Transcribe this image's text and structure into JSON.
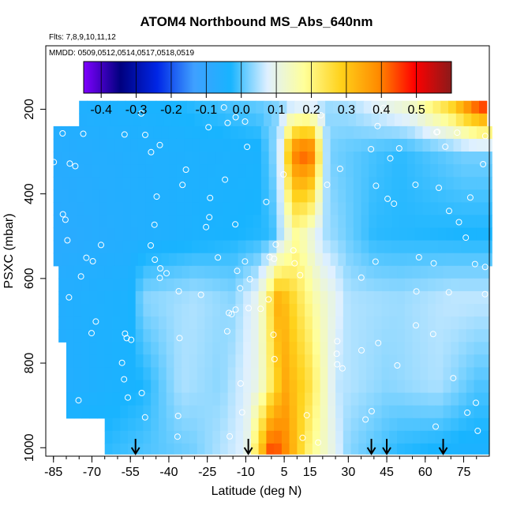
{
  "chart_data": {
    "type": "heatmap",
    "title": "ATOM4 Northbound MS_Abs_640nm",
    "flights_note": "Flts: 7,8,9,10,11,12",
    "dates_note": "MMDD: 0509,0512,0514,0517,0518,0519",
    "xlabel": "Latitude (deg N)",
    "ylabel": "PSXC (mbar)",
    "xlim": [
      -88,
      85
    ],
    "ylim": [
      1020,
      50
    ],
    "x_ticks": [
      -85,
      -70,
      -55,
      -40,
      -25,
      -10,
      5,
      15,
      30,
      45,
      60,
      75
    ],
    "x_minor_step": 5,
    "y_ticks": [
      200,
      400,
      600,
      800,
      1000
    ],
    "colorbar": {
      "ticks": [
        "-0.4",
        "-0.3",
        "-0.2",
        "-0.1",
        "0.0",
        "0.1",
        "0.2",
        "0.3",
        "0.4",
        "0.5"
      ],
      "range": [
        -0.45,
        0.6
      ],
      "colors": [
        "#7f00ff",
        "#00007f",
        "#0026e6",
        "#3fa0ff",
        "#18b4ff",
        "#dff0ff",
        "#ffff99",
        "#ffd11a",
        "#ff8c00",
        "#ff0000",
        "#8b1a1a"
      ]
    },
    "profile_markers_lat": [
      -53,
      -9,
      39,
      45,
      67
    ],
    "pressure_layers": [
      180,
      210,
      240,
      270,
      300,
      330,
      360,
      390,
      420,
      450,
      480,
      510,
      540,
      570,
      600,
      630,
      660,
      690,
      720,
      750,
      780,
      810,
      840,
      870,
      900,
      930,
      960,
      990,
      1015
    ],
    "value_grid_rows": [
      {
        "p": 180,
        "lat_range": [
          -75,
          82
        ],
        "values": [
          [
            -75,
            -0.05
          ],
          [
            -40,
            -0.03
          ],
          [
            0,
            0.02
          ],
          [
            30,
            0.05
          ],
          [
            55,
            0.15
          ],
          [
            70,
            0.3
          ],
          [
            78,
            0.45
          ],
          [
            82,
            0.5
          ]
        ]
      },
      {
        "p": 300,
        "lat_range": [
          -85,
          85
        ],
        "values": [
          [
            -85,
            -0.07
          ],
          [
            -40,
            -0.05
          ],
          [
            -5,
            -0.04
          ],
          [
            3,
            0.05
          ],
          [
            8,
            0.4
          ],
          [
            15,
            0.45
          ],
          [
            22,
            0.02
          ],
          [
            50,
            -0.02
          ],
          [
            75,
            0.02
          ]
        ]
      },
      {
        "p": 500,
        "lat_range": [
          -85,
          85
        ],
        "values": [
          [
            -85,
            -0.08
          ],
          [
            -40,
            -0.05
          ],
          [
            0,
            -0.02
          ],
          [
            10,
            0.18
          ],
          [
            20,
            0.05
          ],
          [
            40,
            -0.02
          ],
          [
            75,
            -0.03
          ]
        ]
      },
      {
        "p": 650,
        "lat_range": [
          -83,
          85
        ],
        "values": [
          [
            -83,
            -0.06
          ],
          [
            -55,
            -0.04
          ],
          [
            -50,
            0.03
          ],
          [
            -30,
            0.05
          ],
          [
            -15,
            0.03
          ],
          [
            -5,
            0.1
          ],
          [
            3,
            0.35
          ],
          [
            10,
            0.25
          ],
          [
            18,
            0.15
          ],
          [
            30,
            0.05
          ],
          [
            50,
            0.04
          ],
          [
            70,
            0.06
          ]
        ]
      },
      {
        "p": 850,
        "lat_range": [
          -80,
          85
        ],
        "values": [
          [
            -80,
            -0.06
          ],
          [
            -50,
            -0.03
          ],
          [
            -35,
            0.05
          ],
          [
            -20,
            0.03
          ],
          [
            -5,
            0.1
          ],
          [
            5,
            0.35
          ],
          [
            15,
            0.25
          ],
          [
            25,
            0.06
          ],
          [
            45,
            0.03
          ],
          [
            65,
            0.05
          ],
          [
            80,
            0.0
          ]
        ]
      },
      {
        "p": 1000,
        "lat_range": [
          -65,
          85
        ],
        "values": [
          [
            -65,
            -0.02
          ],
          [
            -30,
            0.02
          ],
          [
            -10,
            0.08
          ],
          [
            0,
            0.45
          ],
          [
            5,
            0.4
          ],
          [
            15,
            0.2
          ],
          [
            30,
            0.03
          ],
          [
            50,
            -0.02
          ],
          [
            75,
            -0.04
          ]
        ]
      }
    ]
  }
}
